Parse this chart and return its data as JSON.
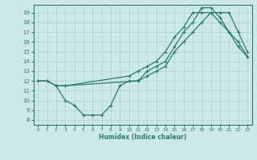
{
  "xlabel": "Humidex (Indice chaleur)",
  "bg_color": "#cde8e8",
  "grid_color": "#aacfcf",
  "line_color": "#2a7a70",
  "xlim": [
    -0.5,
    23.5
  ],
  "ylim": [
    7.5,
    19.8
  ],
  "yticks": [
    8,
    9,
    10,
    11,
    12,
    13,
    14,
    15,
    16,
    17,
    18,
    19
  ],
  "xticks": [
    0,
    1,
    2,
    3,
    4,
    5,
    6,
    7,
    8,
    9,
    10,
    11,
    12,
    13,
    14,
    15,
    16,
    17,
    18,
    19,
    20,
    21,
    22,
    23
  ],
  "line1_x": [
    0,
    1,
    2,
    3,
    10,
    11,
    12,
    13,
    14,
    15,
    16,
    17,
    18,
    19,
    20,
    21,
    22,
    23
  ],
  "line1_y": [
    12,
    12,
    11.5,
    11.5,
    12.5,
    13,
    13.5,
    14,
    15,
    16.5,
    17.5,
    19,
    19,
    19,
    18,
    17,
    15.5,
    14.5
  ],
  "line2_x": [
    0,
    1,
    2,
    3,
    11,
    12,
    13,
    14,
    15,
    16,
    17,
    18,
    19,
    20,
    21,
    22,
    23
  ],
  "line2_y": [
    12,
    12,
    11.5,
    11.5,
    12,
    13,
    13.5,
    14,
    15.5,
    17,
    18,
    19.5,
    19.5,
    18.5,
    17,
    16,
    14.5
  ],
  "line3_x": [
    2,
    3,
    4,
    5,
    6,
    7,
    8,
    9,
    10,
    11,
    12,
    13,
    14,
    15,
    16,
    17,
    18,
    19,
    20,
    21,
    22,
    23
  ],
  "line3_y": [
    11.5,
    10,
    9.5,
    8.5,
    8.5,
    8.5,
    9.5,
    11.5,
    12,
    12,
    12.5,
    13,
    13.5,
    15,
    16,
    17,
    18,
    19,
    19,
    19,
    17,
    15
  ]
}
